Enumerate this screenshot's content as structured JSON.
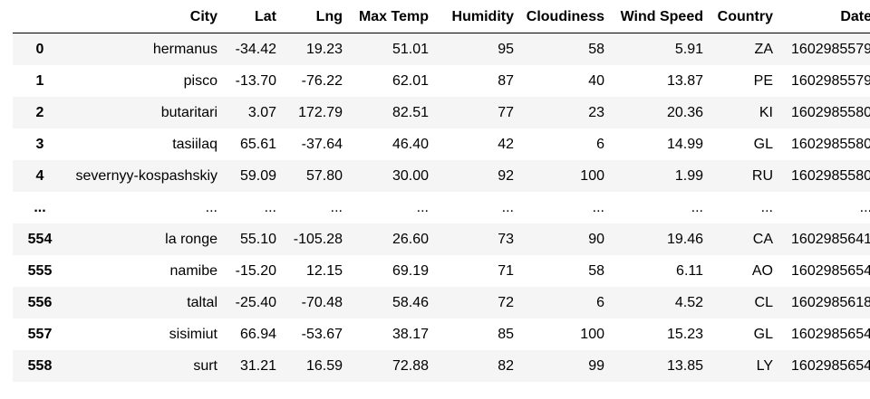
{
  "table": {
    "columns": [
      "",
      "City",
      "Lat",
      "Lng",
      "Max Temp",
      "Humidity",
      "Cloudiness",
      "Wind Speed",
      "Country",
      "Date"
    ],
    "rows": [
      [
        "0",
        "hermanus",
        "-34.42",
        "19.23",
        "51.01",
        "95",
        "58",
        "5.91",
        "ZA",
        "1602985579"
      ],
      [
        "1",
        "pisco",
        "-13.70",
        "-76.22",
        "62.01",
        "87",
        "40",
        "13.87",
        "PE",
        "1602985579"
      ],
      [
        "2",
        "butaritari",
        "3.07",
        "172.79",
        "82.51",
        "77",
        "23",
        "20.36",
        "KI",
        "1602985580"
      ],
      [
        "3",
        "tasiilaq",
        "65.61",
        "-37.64",
        "46.40",
        "42",
        "6",
        "14.99",
        "GL",
        "1602985580"
      ],
      [
        "4",
        "severnyy-kospashskiy",
        "59.09",
        "57.80",
        "30.00",
        "92",
        "100",
        "1.99",
        "RU",
        "1602985580"
      ],
      [
        "...",
        "...",
        "...",
        "...",
        "...",
        "...",
        "...",
        "...",
        "...",
        "..."
      ],
      [
        "554",
        "la ronge",
        "55.10",
        "-105.28",
        "26.60",
        "73",
        "90",
        "19.46",
        "CA",
        "1602985641"
      ],
      [
        "555",
        "namibe",
        "-15.20",
        "12.15",
        "69.19",
        "71",
        "58",
        "6.11",
        "AO",
        "1602985654"
      ],
      [
        "556",
        "taltal",
        "-25.40",
        "-70.48",
        "58.46",
        "72",
        "6",
        "4.52",
        "CL",
        "1602985618"
      ],
      [
        "557",
        "sisimiut",
        "66.94",
        "-53.67",
        "38.17",
        "85",
        "100",
        "15.23",
        "GL",
        "1602985654"
      ],
      [
        "558",
        "surt",
        "31.21",
        "16.59",
        "72.88",
        "82",
        "99",
        "13.85",
        "LY",
        "1602985654"
      ]
    ]
  }
}
